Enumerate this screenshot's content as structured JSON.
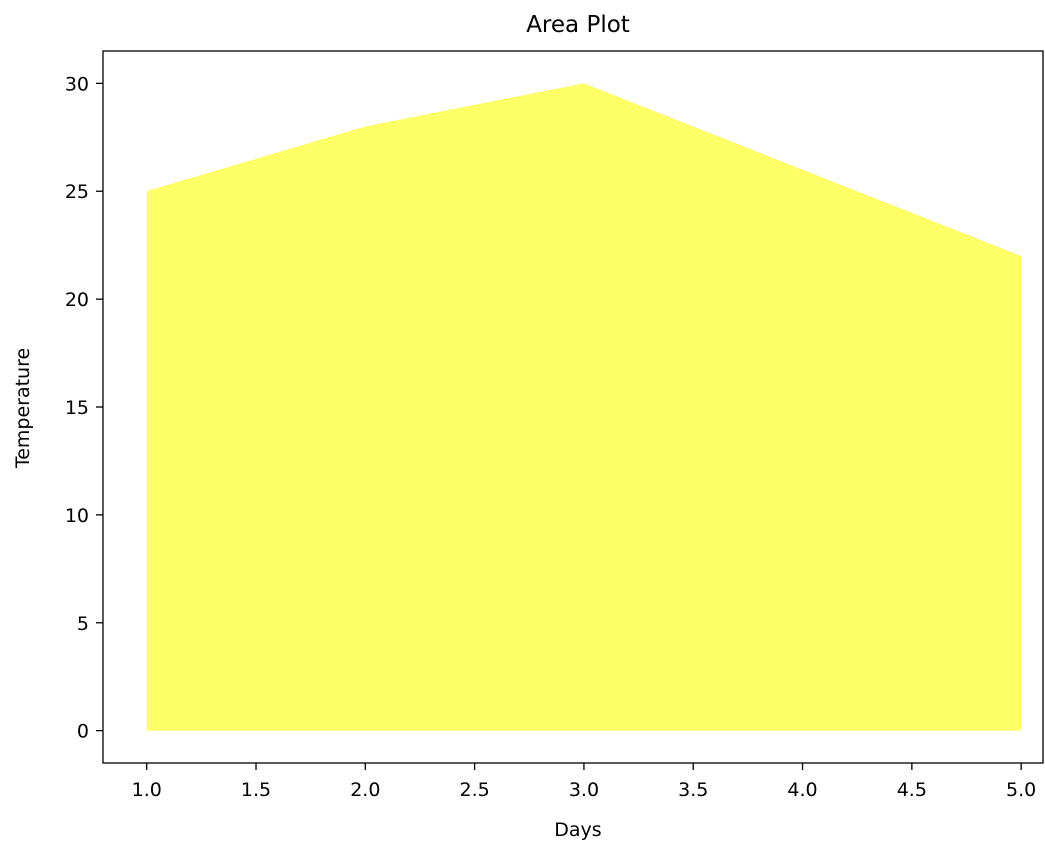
{
  "chart_data": {
    "type": "area",
    "title": "Area Plot",
    "xlabel": "Days",
    "ylabel": "Temperature",
    "x": [
      1,
      2,
      3,
      4,
      5
    ],
    "series": [
      {
        "values": [
          25,
          28,
          30,
          26,
          22
        ],
        "color": "#ffff66"
      }
    ],
    "xlim": [
      0.8,
      5.1
    ],
    "ylim": [
      -1.5,
      31.5
    ],
    "xticks": [
      1.0,
      1.5,
      2.0,
      2.5,
      3.0,
      3.5,
      4.0,
      4.5,
      5.0
    ],
    "xtick_labels": [
      "1.0",
      "1.5",
      "2.0",
      "2.5",
      "3.0",
      "3.5",
      "4.0",
      "4.5",
      "5.0"
    ],
    "yticks": [
      0,
      5,
      10,
      15,
      20,
      25,
      30
    ],
    "ytick_labels": [
      "0",
      "5",
      "10",
      "15",
      "20",
      "25",
      "30"
    ],
    "grid": false,
    "legend": false
  }
}
